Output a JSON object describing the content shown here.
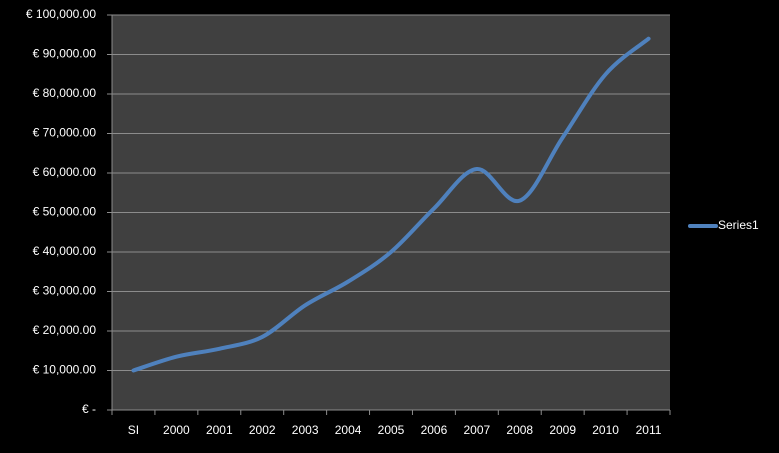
{
  "chart_data": {
    "type": "line",
    "categories": [
      "SI",
      "2000",
      "2001",
      "2002",
      "2003",
      "2004",
      "2005",
      "2006",
      "2007",
      "2008",
      "2009",
      "2010",
      "2011"
    ],
    "series": [
      {
        "name": "Series1",
        "color": "#4f81bd",
        "values": [
          10000,
          13500,
          15500,
          18500,
          26500,
          32500,
          40000,
          51000,
          61000,
          53000,
          69000,
          85000,
          94000
        ]
      }
    ],
    "ylim": [
      0,
      100000
    ],
    "yticks": [
      {
        "value": 0,
        "label": "€ -"
      },
      {
        "value": 10000,
        "label": "€ 10,000.00"
      },
      {
        "value": 20000,
        "label": "€ 20,000.00"
      },
      {
        "value": 30000,
        "label": "€ 30,000.00"
      },
      {
        "value": 40000,
        "label": "€ 40,000.00"
      },
      {
        "value": 50000,
        "label": "€ 50,000.00"
      },
      {
        "value": 60000,
        "label": "€ 60,000.00"
      },
      {
        "value": 70000,
        "label": "€ 70,000.00"
      },
      {
        "value": 80000,
        "label": "€ 80,000.00"
      },
      {
        "value": 90000,
        "label": "€ 90,000.00"
      },
      {
        "value": 100000,
        "label": "€ 100,000.00"
      }
    ],
    "grid": true,
    "smooth": true,
    "legend": "right"
  }
}
